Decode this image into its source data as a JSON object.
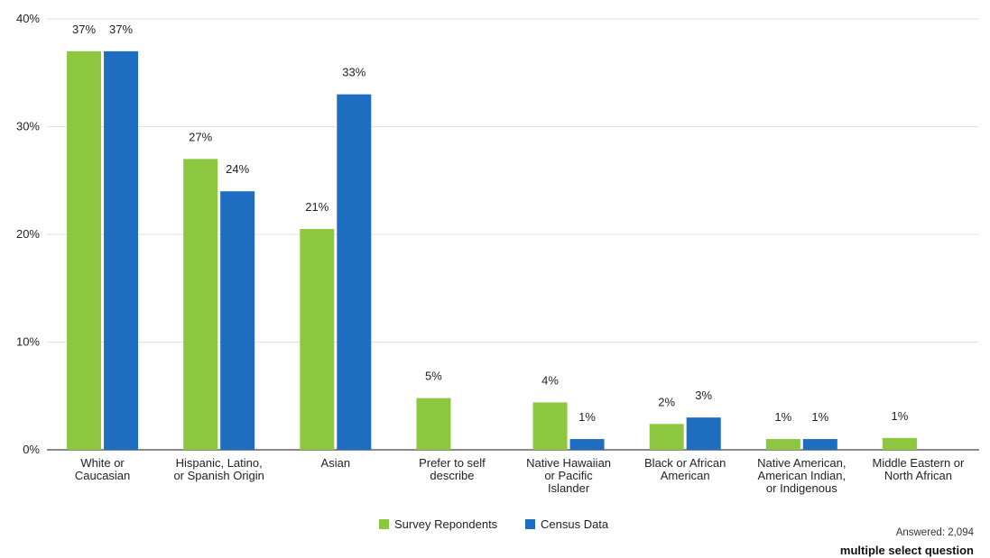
{
  "chart_data": {
    "type": "bar",
    "categories": [
      [
        "White or",
        "Caucasian"
      ],
      [
        "Hispanic, Latino,",
        "or Spanish Origin"
      ],
      [
        "Asian"
      ],
      [
        "Prefer to self",
        "describe"
      ],
      [
        "Native Hawaiian",
        "or Pacific",
        "Islander"
      ],
      [
        "Black or African",
        "American"
      ],
      [
        "Native American,",
        "American Indian,",
        "or Indigenous"
      ],
      [
        "Middle Eastern or",
        "North African"
      ]
    ],
    "series": [
      {
        "name": "Survey Repondents",
        "color": "#8dc63f",
        "values": [
          37,
          27,
          20.5,
          4.8,
          4.4,
          2.4,
          1,
          1.1
        ],
        "labels": [
          "37%",
          "27%",
          "21%",
          "5%",
          "4%",
          "2%",
          "1%",
          "1%"
        ]
      },
      {
        "name": "Census Data",
        "color": "#1f6dc0",
        "values": [
          37,
          24,
          33,
          null,
          1,
          3,
          1,
          null
        ],
        "labels": [
          "37%",
          "24%",
          "33%",
          "",
          "1%",
          "3%",
          "1%",
          ""
        ]
      }
    ],
    "yticks": [
      "0%",
      "10%",
      "20%",
      "30%",
      "40%"
    ],
    "ylim": [
      0,
      40
    ],
    "grid": true,
    "legend": "bottom-center"
  },
  "footer": {
    "answered": "Answered: 2,094",
    "question_type": "multiple select question"
  }
}
